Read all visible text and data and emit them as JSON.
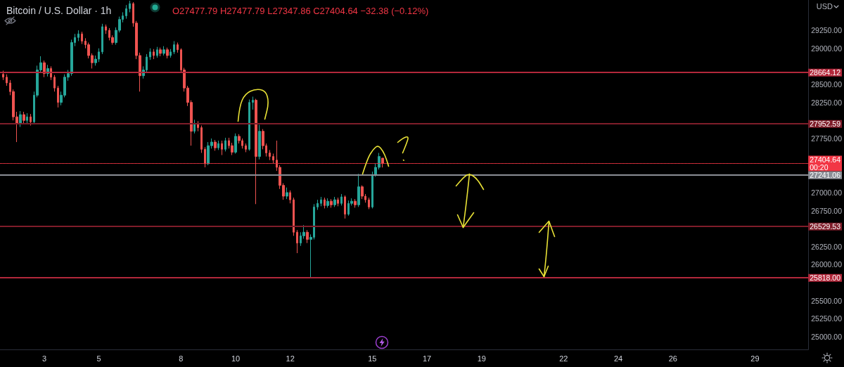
{
  "chart_data": {
    "type": "candlestick",
    "title": "Bitcoin / U.S. Dollar · 1h",
    "subtitle": "O27477.79 H27477.79 L27347.86 C27404.64 −32.38 (−0.12%)",
    "ylabel": "USD",
    "x": [
      1.5,
      1.625,
      1.75,
      1.875,
      2,
      2.125,
      2.25,
      2.375,
      2.5,
      2.625,
      2.75,
      2.875,
      3,
      3.125,
      3.25,
      3.375,
      3.5,
      3.625,
      3.75,
      3.875,
      4,
      4.125,
      4.25,
      4.375,
      4.5,
      4.625,
      4.75,
      4.875,
      5,
      5.125,
      5.25,
      5.375,
      5.5,
      5.625,
      5.75,
      5.875,
      6,
      6.125,
      6.25,
      6.375,
      6.5,
      6.625,
      6.75,
      6.875,
      7,
      7.125,
      7.25,
      7.375,
      7.5,
      7.625,
      7.75,
      7.875,
      8,
      8.125,
      8.25,
      8.375,
      8.5,
      8.625,
      8.75,
      8.875,
      9,
      9.125,
      9.25,
      9.375,
      9.5,
      9.625,
      9.75,
      9.875,
      10,
      10.125,
      10.25,
      10.375,
      10.5,
      10.625,
      10.75,
      10.875,
      11,
      11.125,
      11.25,
      11.375,
      11.5,
      11.625,
      11.75,
      11.875,
      12,
      12.125,
      12.25,
      12.375,
      12.5,
      12.625,
      12.75,
      12.875,
      13,
      13.125,
      13.25,
      13.375,
      13.5,
      13.625,
      13.75,
      13.875,
      14,
      14.125,
      14.25,
      14.375,
      14.5,
      14.625,
      14.75,
      14.875,
      15,
      15.125,
      15.25,
      15.375
    ],
    "ohlc": [
      [
        28640,
        28690,
        28560,
        28600
      ],
      [
        28600,
        28640,
        28480,
        28520
      ],
      [
        28520,
        28560,
        28350,
        28400
      ],
      [
        28400,
        28430,
        28000,
        28050
      ],
      [
        28050,
        28120,
        27700,
        27950
      ],
      [
        27950,
        28130,
        27910,
        28080
      ],
      [
        28080,
        28120,
        27960,
        28000
      ],
      [
        28000,
        28100,
        27960,
        28050
      ],
      [
        28050,
        28090,
        27930,
        27980
      ],
      [
        27980,
        28400,
        27950,
        28350
      ],
      [
        28350,
        28760,
        28320,
        28700
      ],
      [
        28700,
        28890,
        28660,
        28800
      ],
      [
        28800,
        28830,
        28600,
        28650
      ],
      [
        28650,
        28770,
        28610,
        28720
      ],
      [
        28720,
        28750,
        28560,
        28600
      ],
      [
        28600,
        28630,
        28400,
        28450
      ],
      [
        28450,
        28480,
        28180,
        28250
      ],
      [
        28250,
        28400,
        28210,
        28350
      ],
      [
        28350,
        28640,
        28320,
        28600
      ],
      [
        28600,
        28700,
        28550,
        28650
      ],
      [
        28650,
        29120,
        28620,
        29080
      ],
      [
        29080,
        29200,
        29030,
        29150
      ],
      [
        29150,
        29250,
        29100,
        29200
      ],
      [
        29200,
        29230,
        29060,
        29100
      ],
      [
        29100,
        29140,
        29000,
        29050
      ],
      [
        29050,
        29080,
        28860,
        28900
      ],
      [
        28900,
        28930,
        28720,
        28800
      ],
      [
        28800,
        28900,
        28760,
        28850
      ],
      [
        28850,
        29000,
        28810,
        28950
      ],
      [
        28950,
        29340,
        28920,
        29300
      ],
      [
        29300,
        29330,
        29200,
        29250
      ],
      [
        29250,
        29280,
        29110,
        29150
      ],
      [
        29150,
        29180,
        29050,
        29080
      ],
      [
        29080,
        29290,
        29050,
        29250
      ],
      [
        29250,
        29440,
        29220,
        29400
      ],
      [
        29400,
        29500,
        29360,
        29450
      ],
      [
        29450,
        29600,
        29410,
        29550
      ],
      [
        29550,
        29660,
        29500,
        29620
      ],
      [
        29620,
        29640,
        29300,
        29350
      ],
      [
        29350,
        29380,
        28850,
        28900
      ],
      [
        28900,
        28940,
        28400,
        28620
      ],
      [
        28620,
        28750,
        28580,
        28700
      ],
      [
        28700,
        28920,
        28670,
        28880
      ],
      [
        28880,
        29000,
        28840,
        28950
      ],
      [
        28950,
        28990,
        28850,
        28900
      ],
      [
        28900,
        29020,
        28870,
        28980
      ],
      [
        28980,
        29010,
        28890,
        28930
      ],
      [
        28930,
        29030,
        28900,
        28980
      ],
      [
        28980,
        29010,
        28860,
        28900
      ],
      [
        28900,
        28990,
        28870,
        28950
      ],
      [
        28950,
        29100,
        28920,
        29050
      ],
      [
        29050,
        29080,
        28940,
        28980
      ],
      [
        28980,
        29000,
        28660,
        28700
      ],
      [
        28700,
        28730,
        28400,
        28450
      ],
      [
        28450,
        28480,
        28200,
        28250
      ],
      [
        28250,
        28280,
        27650,
        27850
      ],
      [
        27850,
        28010,
        27820,
        27950
      ],
      [
        27950,
        27990,
        27850,
        27900
      ],
      [
        27900,
        27930,
        27550,
        27600
      ],
      [
        27600,
        27630,
        27350,
        27400
      ],
      [
        27400,
        27700,
        27380,
        27650
      ],
      [
        27650,
        27750,
        27610,
        27700
      ],
      [
        27700,
        27730,
        27580,
        27620
      ],
      [
        27620,
        27720,
        27590,
        27680
      ],
      [
        27680,
        27720,
        27520,
        27600
      ],
      [
        27600,
        27760,
        27570,
        27720
      ],
      [
        27720,
        27760,
        27610,
        27650
      ],
      [
        27650,
        27690,
        27520,
        27560
      ],
      [
        27560,
        27820,
        27540,
        27780
      ],
      [
        27780,
        27810,
        27680,
        27720
      ],
      [
        27720,
        27750,
        27610,
        27650
      ],
      [
        27650,
        27680,
        27560,
        27600
      ],
      [
        27600,
        28290,
        27580,
        28250
      ],
      [
        28250,
        28330,
        28150,
        28280
      ],
      [
        28280,
        28300,
        26840,
        27500
      ],
      [
        27500,
        27940,
        27460,
        27850
      ],
      [
        27850,
        27880,
        27600,
        27650
      ],
      [
        27650,
        27680,
        27500,
        27550
      ],
      [
        27550,
        27590,
        27450,
        27500
      ],
      [
        27500,
        27540,
        27400,
        27450
      ],
      [
        27450,
        27720,
        27300,
        27350
      ],
      [
        27350,
        27380,
        27050,
        27100
      ],
      [
        27100,
        27130,
        26900,
        26950
      ],
      [
        26950,
        27070,
        26910,
        27000
      ],
      [
        27000,
        27030,
        26850,
        26900
      ],
      [
        26900,
        26930,
        26400,
        26450
      ],
      [
        26450,
        26480,
        26160,
        26300
      ],
      [
        26300,
        26450,
        26260,
        26400
      ],
      [
        26400,
        26550,
        26360,
        26450
      ],
      [
        26450,
        26480,
        26300,
        26350
      ],
      [
        26350,
        26420,
        25820,
        26380
      ],
      [
        26380,
        26840,
        26350,
        26800
      ],
      [
        26800,
        26900,
        26760,
        26850
      ],
      [
        26850,
        26940,
        26810,
        26900
      ],
      [
        26900,
        26930,
        26780,
        26820
      ],
      [
        26820,
        26920,
        26790,
        26880
      ],
      [
        26880,
        26910,
        26790,
        26830
      ],
      [
        26830,
        26940,
        26800,
        26900
      ],
      [
        26900,
        26930,
        26810,
        26850
      ],
      [
        26850,
        26980,
        26820,
        26940
      ],
      [
        26940,
        26960,
        26640,
        26700
      ],
      [
        26700,
        26890,
        26680,
        26850
      ],
      [
        26850,
        26920,
        26820,
        26880
      ],
      [
        26880,
        26910,
        26790,
        26830
      ],
      [
        26830,
        27260,
        26800,
        27080
      ],
      [
        27080,
        27100,
        26910,
        26950
      ],
      [
        26950,
        26980,
        26860,
        26900
      ],
      [
        26900,
        26930,
        26770,
        26800
      ],
      [
        26800,
        27290,
        26780,
        27250
      ],
      [
        27250,
        27400,
        27220,
        27350
      ],
      [
        27350,
        27550,
        27320,
        27500
      ],
      [
        27477.79,
        27477.79,
        27347.86,
        27404.64
      ]
    ],
    "colors": [
      "#ef5350",
      "#ef5350",
      "#ef5350",
      "#ef5350",
      "#ef5350",
      "#26a69a",
      "#ef5350",
      "#26a69a",
      "#ef5350",
      "#26a69a",
      "#26a69a",
      "#26a69a",
      "#ef5350",
      "#26a69a",
      "#ef5350",
      "#ef5350",
      "#ef5350",
      "#26a69a",
      "#26a69a",
      "#26a69a",
      "#26a69a",
      "#26a69a",
      "#26a69a",
      "#ef5350",
      "#ef5350",
      "#ef5350",
      "#ef5350",
      "#26a69a",
      "#26a69a",
      "#26a69a",
      "#ef5350",
      "#ef5350",
      "#ef5350",
      "#26a69a",
      "#26a69a",
      "#26a69a",
      "#26a69a",
      "#26a69a",
      "#ef5350",
      "#ef5350",
      "#ef5350",
      "#26a69a",
      "#26a69a",
      "#26a69a",
      "#ef5350",
      "#26a69a",
      "#ef5350",
      "#26a69a",
      "#ef5350",
      "#26a69a",
      "#26a69a",
      "#ef5350",
      "#ef5350",
      "#ef5350",
      "#ef5350",
      "#ef5350",
      "#26a69a",
      "#ef5350",
      "#ef5350",
      "#ef5350",
      "#26a69a",
      "#26a69a",
      "#ef5350",
      "#26a69a",
      "#ef5350",
      "#26a69a",
      "#ef5350",
      "#ef5350",
      "#26a69a",
      "#ef5350",
      "#ef5350",
      "#ef5350",
      "#26a69a",
      "#26a69a",
      "#ef5350",
      "#26a69a",
      "#ef5350",
      "#ef5350",
      "#ef5350",
      "#ef5350",
      "#ef5350",
      "#ef5350",
      "#ef5350",
      "#26a69a",
      "#ef5350",
      "#ef5350",
      "#ef5350",
      "#26a69a",
      "#26a69a",
      "#ef5350",
      "#26a69a",
      "#26a69a",
      "#26a69a",
      "#26a69a",
      "#ef5350",
      "#26a69a",
      "#ef5350",
      "#26a69a",
      "#ef5350",
      "#26a69a",
      "#ef5350",
      "#26a69a",
      "#26a69a",
      "#ef5350",
      "#26a69a",
      "#ef5350",
      "#ef5350",
      "#ef5350",
      "#26a69a",
      "#26a69a",
      "#26a69a",
      "#ef5350"
    ],
    "xlim": [
      1.38,
      30.95
    ],
    "xticks": [
      3,
      5,
      8,
      10,
      12,
      15,
      17,
      19,
      22,
      24,
      26,
      29
    ],
    "ylim": [
      24825,
      29670
    ],
    "yticks": [
      {
        "value": 25000,
        "label": "25000.00"
      },
      {
        "value": 25250,
        "label": "25250.00"
      },
      {
        "value": 25500,
        "label": "25500.00"
      },
      {
        "value": 26000,
        "label": "26000.00"
      },
      {
        "value": 26250,
        "label": "26250.00"
      },
      {
        "value": 26750,
        "label": "26750.00"
      },
      {
        "value": 27000,
        "label": "27000.00"
      },
      {
        "value": 27750,
        "label": "27750.00"
      },
      {
        "value": 28250,
        "label": "28250.00"
      },
      {
        "value": 28500,
        "label": "28500.00"
      },
      {
        "value": 29000,
        "label": "29000.00"
      },
      {
        "value": 29250,
        "label": "29250.00"
      }
    ],
    "ref_lines": [
      {
        "axis": "y",
        "value": 28664.12,
        "label": "28664.12",
        "color": "#b2283b",
        "line_style": "solid"
      },
      {
        "axis": "y",
        "value": 27952.59,
        "label": "27952.59",
        "color": "#7f1d2a",
        "line_style": "solid"
      },
      {
        "axis": "y",
        "value": 27404.64,
        "label": "27404.64\n00:20",
        "color": "#f23645",
        "line_style": "dotted"
      },
      {
        "axis": "y",
        "value": 27241.06,
        "label": "27241.06",
        "color": "#8b8e96",
        "line_style": "solid"
      },
      {
        "axis": "y",
        "value": 26529.53,
        "label": "26529.53",
        "color": "#7f1d2a",
        "line_style": "solid"
      },
      {
        "axis": "y",
        "value": 25818,
        "label": "25818.00",
        "color": "#b2283b",
        "line_style": "solid"
      }
    ]
  }
}
